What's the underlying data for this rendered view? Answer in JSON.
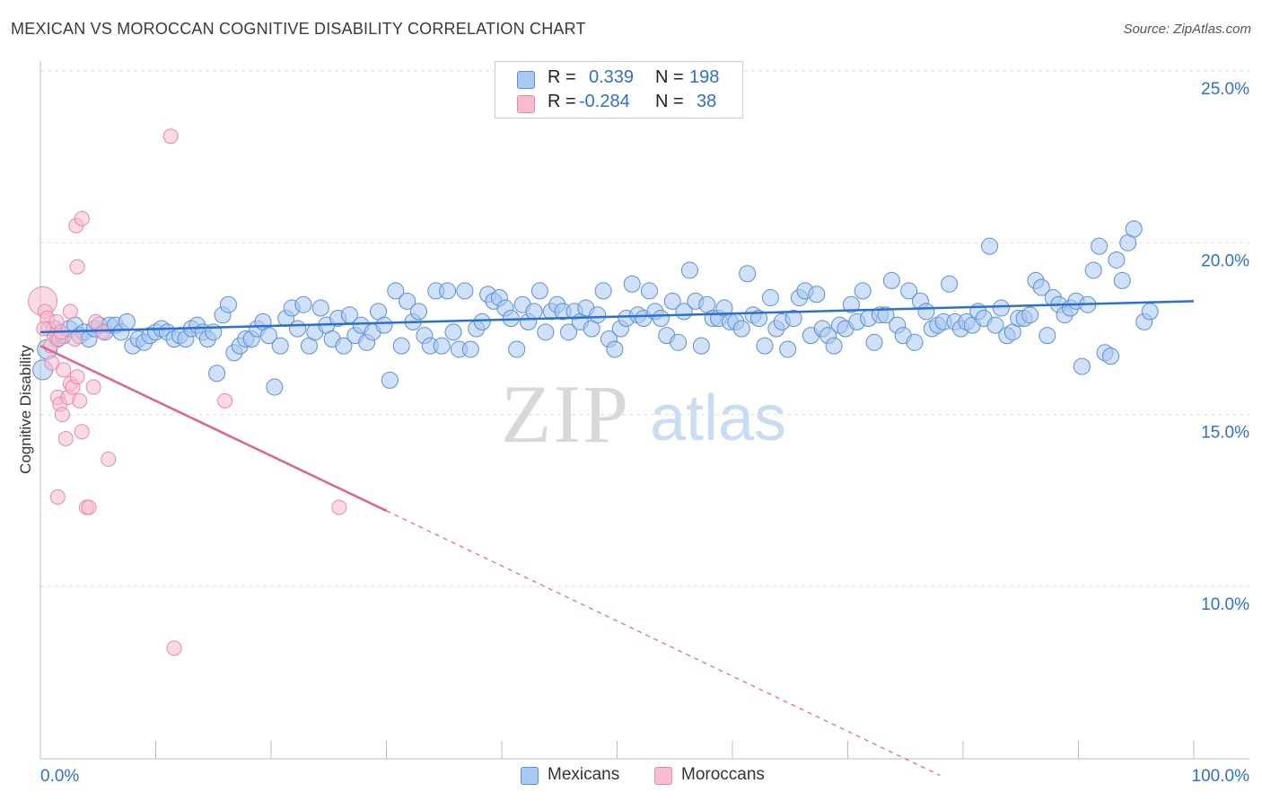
{
  "title": "MEXICAN VS MOROCCAN COGNITIVE DISABILITY CORRELATION CHART",
  "source": "Source: ZipAtlas.com",
  "watermark": {
    "zip": "ZIP",
    "atlas": "atlas"
  },
  "legend": {
    "rows": [
      {
        "r_label": "R =",
        "r_value": "0.339",
        "n_label": "N =",
        "n_value": "198"
      },
      {
        "r_label": "R =",
        "r_value": "-0.284",
        "n_label": "N =",
        "n_value": "38"
      }
    ]
  },
  "bottom_legend": {
    "mexicans": "Mexicans",
    "moroccans": "Moroccans"
  },
  "colors": {
    "mexicans_fill": "#a9c8f0",
    "mexicans_stroke": "#5b8fd6",
    "mexicans_line": "#2b6fd1",
    "moroccans_fill": "#f7bcd0",
    "moroccans_stroke": "#e889a8",
    "moroccans_line": "#e0628f",
    "tick_label": "#2e6fd0",
    "grid": "#dddddd"
  },
  "chart_data": {
    "type": "scatter",
    "title": "MEXICAN VS MOROCCAN COGNITIVE DISABILITY CORRELATION CHART",
    "xlabel": "",
    "ylabel": "Cognitive Disability",
    "xlim": [
      0,
      100
    ],
    "ylim": [
      5,
      25.5
    ],
    "x_ticks": [
      "0.0%",
      "100.0%"
    ],
    "y_ticks": [
      {
        "value": 10,
        "label": "10.0%"
      },
      {
        "value": 15,
        "label": "15.0%"
      },
      {
        "value": 20,
        "label": "20.0%"
      },
      {
        "value": 25,
        "label": "25.0%"
      }
    ],
    "grid": true,
    "legend_position": "top-center",
    "series": [
      {
        "name": "Mexicans",
        "r": 0.339,
        "n": 198,
        "trend": {
          "x": [
            0,
            100
          ],
          "y": [
            17.4,
            18.3
          ],
          "dashed_from": null
        },
        "points": [
          [
            0.2,
            16.3
          ],
          [
            0.6,
            16.9
          ],
          [
            1.2,
            17.5
          ],
          [
            1.5,
            17.2
          ],
          [
            2.0,
            17.3
          ],
          [
            2.5,
            17.5
          ],
          [
            3.0,
            17.6
          ],
          [
            3.4,
            17.3
          ],
          [
            3.8,
            17.4
          ],
          [
            4.2,
            17.2
          ],
          [
            4.7,
            17.5
          ],
          [
            5.1,
            17.6
          ],
          [
            5.6,
            17.4
          ],
          [
            6.0,
            17.6
          ],
          [
            6.5,
            17.6
          ],
          [
            7.0,
            17.4
          ],
          [
            7.5,
            17.7
          ],
          [
            8.0,
            17.0
          ],
          [
            8.5,
            17.2
          ],
          [
            9.0,
            17.1
          ],
          [
            9.5,
            17.3
          ],
          [
            10.0,
            17.4
          ],
          [
            10.5,
            17.5
          ],
          [
            11.0,
            17.4
          ],
          [
            11.6,
            17.2
          ],
          [
            12.1,
            17.3
          ],
          [
            12.6,
            17.2
          ],
          [
            13.1,
            17.5
          ],
          [
            13.6,
            17.6
          ],
          [
            14.1,
            17.4
          ],
          [
            14.5,
            17.2
          ],
          [
            15.0,
            17.4
          ],
          [
            15.3,
            16.2
          ],
          [
            15.8,
            17.9
          ],
          [
            16.3,
            18.2
          ],
          [
            16.8,
            16.8
          ],
          [
            17.3,
            17.0
          ],
          [
            17.8,
            17.2
          ],
          [
            18.3,
            17.2
          ],
          [
            18.8,
            17.5
          ],
          [
            19.3,
            17.7
          ],
          [
            19.8,
            17.3
          ],
          [
            20.3,
            15.8
          ],
          [
            20.8,
            17.0
          ],
          [
            21.3,
            17.8
          ],
          [
            21.8,
            18.1
          ],
          [
            22.3,
            17.5
          ],
          [
            22.8,
            18.2
          ],
          [
            23.3,
            17.0
          ],
          [
            23.8,
            17.4
          ],
          [
            24.3,
            18.1
          ],
          [
            24.8,
            17.6
          ],
          [
            25.3,
            17.2
          ],
          [
            25.8,
            17.8
          ],
          [
            26.3,
            17.0
          ],
          [
            26.8,
            17.9
          ],
          [
            27.3,
            17.3
          ],
          [
            27.8,
            17.6
          ],
          [
            28.3,
            17.1
          ],
          [
            28.8,
            17.4
          ],
          [
            29.3,
            18.0
          ],
          [
            29.8,
            17.6
          ],
          [
            30.3,
            16.0
          ],
          [
            30.8,
            18.6
          ],
          [
            31.3,
            17.0
          ],
          [
            31.8,
            18.3
          ],
          [
            32.3,
            17.7
          ],
          [
            32.8,
            18.0
          ],
          [
            33.3,
            17.3
          ],
          [
            33.8,
            17.0
          ],
          [
            34.3,
            18.6
          ],
          [
            34.8,
            17.0
          ],
          [
            35.3,
            18.6
          ],
          [
            35.8,
            17.4
          ],
          [
            36.3,
            16.9
          ],
          [
            36.8,
            18.6
          ],
          [
            37.3,
            16.9
          ],
          [
            37.8,
            17.5
          ],
          [
            38.3,
            17.7
          ],
          [
            38.8,
            18.5
          ],
          [
            39.3,
            18.3
          ],
          [
            39.8,
            18.4
          ],
          [
            40.3,
            18.1
          ],
          [
            40.8,
            17.8
          ],
          [
            41.3,
            16.9
          ],
          [
            41.8,
            18.2
          ],
          [
            42.3,
            17.7
          ],
          [
            42.8,
            18.0
          ],
          [
            43.3,
            18.6
          ],
          [
            43.8,
            17.4
          ],
          [
            44.3,
            18.0
          ],
          [
            44.8,
            18.2
          ],
          [
            45.3,
            18.0
          ],
          [
            45.8,
            17.4
          ],
          [
            46.3,
            18.0
          ],
          [
            46.8,
            17.7
          ],
          [
            47.3,
            18.1
          ],
          [
            47.8,
            17.5
          ],
          [
            48.3,
            17.9
          ],
          [
            48.8,
            18.6
          ],
          [
            49.3,
            17.2
          ],
          [
            49.8,
            16.9
          ],
          [
            50.3,
            17.5
          ],
          [
            50.8,
            17.8
          ],
          [
            51.3,
            18.8
          ],
          [
            51.8,
            17.9
          ],
          [
            52.3,
            17.8
          ],
          [
            52.8,
            18.6
          ],
          [
            53.3,
            18.0
          ],
          [
            53.8,
            17.8
          ],
          [
            54.3,
            17.3
          ],
          [
            54.8,
            18.3
          ],
          [
            55.3,
            17.1
          ],
          [
            55.8,
            18.0
          ],
          [
            56.3,
            19.2
          ],
          [
            56.8,
            18.3
          ],
          [
            57.3,
            17.0
          ],
          [
            57.8,
            18.2
          ],
          [
            58.3,
            17.8
          ],
          [
            58.8,
            17.8
          ],
          [
            59.3,
            18.1
          ],
          [
            59.8,
            17.7
          ],
          [
            60.3,
            17.7
          ],
          [
            60.8,
            17.5
          ],
          [
            61.3,
            19.1
          ],
          [
            61.8,
            17.9
          ],
          [
            62.3,
            17.8
          ],
          [
            62.8,
            17.0
          ],
          [
            63.3,
            18.4
          ],
          [
            63.8,
            17.5
          ],
          [
            64.3,
            17.7
          ],
          [
            64.8,
            16.9
          ],
          [
            65.3,
            17.8
          ],
          [
            65.8,
            18.4
          ],
          [
            66.3,
            18.6
          ],
          [
            66.8,
            17.3
          ],
          [
            67.3,
            18.5
          ],
          [
            67.8,
            17.5
          ],
          [
            68.3,
            17.3
          ],
          [
            68.8,
            17.0
          ],
          [
            69.3,
            17.6
          ],
          [
            69.8,
            17.5
          ],
          [
            70.3,
            18.2
          ],
          [
            70.8,
            17.7
          ],
          [
            71.3,
            18.6
          ],
          [
            71.8,
            17.8
          ],
          [
            72.3,
            17.1
          ],
          [
            72.8,
            17.9
          ],
          [
            73.3,
            17.9
          ],
          [
            73.8,
            18.9
          ],
          [
            74.3,
            17.6
          ],
          [
            74.8,
            17.3
          ],
          [
            75.3,
            18.6
          ],
          [
            75.8,
            17.1
          ],
          [
            76.3,
            18.3
          ],
          [
            76.8,
            18.0
          ],
          [
            77.3,
            17.5
          ],
          [
            77.8,
            17.6
          ],
          [
            78.3,
            17.7
          ],
          [
            78.8,
            18.8
          ],
          [
            79.3,
            17.7
          ],
          [
            79.8,
            17.5
          ],
          [
            80.3,
            17.7
          ],
          [
            80.8,
            17.6
          ],
          [
            81.3,
            18.0
          ],
          [
            81.8,
            17.8
          ],
          [
            82.3,
            19.9
          ],
          [
            82.8,
            17.6
          ],
          [
            83.3,
            18.1
          ],
          [
            83.8,
            17.3
          ],
          [
            84.3,
            17.4
          ],
          [
            84.8,
            17.8
          ],
          [
            85.3,
            17.8
          ],
          [
            85.8,
            17.9
          ],
          [
            86.3,
            18.9
          ],
          [
            86.8,
            18.7
          ],
          [
            87.3,
            17.3
          ],
          [
            87.8,
            18.4
          ],
          [
            88.3,
            18.2
          ],
          [
            88.8,
            17.9
          ],
          [
            89.3,
            18.1
          ],
          [
            89.8,
            18.3
          ],
          [
            90.3,
            16.4
          ],
          [
            90.8,
            18.2
          ],
          [
            91.3,
            19.2
          ],
          [
            91.8,
            19.9
          ],
          [
            92.3,
            16.8
          ],
          [
            92.8,
            16.7
          ],
          [
            93.3,
            19.5
          ],
          [
            93.8,
            18.9
          ],
          [
            94.3,
            20.0
          ],
          [
            94.8,
            20.4
          ],
          [
            95.7,
            17.7
          ],
          [
            96.2,
            18.0
          ]
        ]
      },
      {
        "name": "Moroccans",
        "r": -0.284,
        "n": 38,
        "trend": {
          "x": [
            0,
            30,
            78
          ],
          "y": [
            17.0,
            12.2,
            4.5
          ],
          "dashed_from": 30
        },
        "points": [
          [
            0.2,
            18.3
          ],
          [
            0.4,
            18.0
          ],
          [
            0.6,
            17.8
          ],
          [
            0.7,
            17.5
          ],
          [
            0.9,
            17.0
          ],
          [
            1.0,
            16.5
          ],
          [
            1.2,
            17.3
          ],
          [
            1.4,
            17.7
          ],
          [
            1.6,
            17.2
          ],
          [
            1.8,
            17.4
          ],
          [
            1.5,
            15.5
          ],
          [
            1.7,
            15.3
          ],
          [
            1.9,
            15.0
          ],
          [
            2.0,
            16.3
          ],
          [
            2.2,
            14.3
          ],
          [
            2.4,
            15.5
          ],
          [
            2.6,
            15.9
          ],
          [
            2.8,
            15.8
          ],
          [
            3.0,
            17.2
          ],
          [
            3.2,
            16.1
          ],
          [
            3.4,
            15.4
          ],
          [
            3.6,
            14.5
          ],
          [
            4.0,
            12.3
          ],
          [
            4.2,
            12.3
          ],
          [
            4.6,
            15.8
          ],
          [
            4.8,
            17.7
          ],
          [
            5.4,
            17.4
          ],
          [
            3.1,
            20.5
          ],
          [
            3.6,
            20.7
          ],
          [
            3.2,
            19.3
          ],
          [
            1.5,
            12.6
          ],
          [
            5.9,
            13.7
          ],
          [
            11.3,
            23.1
          ],
          [
            11.6,
            8.2
          ],
          [
            16.0,
            15.4
          ],
          [
            25.9,
            12.3
          ],
          [
            2.6,
            18.0
          ],
          [
            0.3,
            17.5
          ]
        ]
      }
    ]
  }
}
